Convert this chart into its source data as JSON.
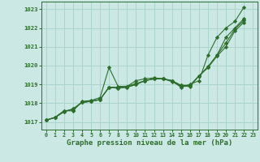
{
  "background_color": "#cce8e4",
  "plot_bg_color": "#cce8e4",
  "grid_color": "#aad4cc",
  "line_color": "#2d6e2d",
  "marker_color": "#2d6e2d",
  "xlabel": "Graphe pression niveau de la mer (hPa)",
  "xlabel_fontsize": 6.5,
  "ylim": [
    1016.6,
    1023.4
  ],
  "xlim": [
    -0.5,
    23.5
  ],
  "yticks": [
    1017,
    1018,
    1019,
    1020,
    1021,
    1022,
    1023
  ],
  "xticks": [
    0,
    1,
    2,
    3,
    4,
    5,
    6,
    7,
    8,
    9,
    10,
    11,
    12,
    13,
    14,
    15,
    16,
    17,
    18,
    19,
    20,
    21,
    22,
    23
  ],
  "series": [
    [
      1017.1,
      1017.25,
      1017.6,
      1017.6,
      1018.1,
      1018.15,
      1018.3,
      1019.9,
      1018.9,
      1018.9,
      1019.2,
      1019.3,
      1019.35,
      1019.3,
      1019.2,
      1018.85,
      1019.0,
      1019.2,
      1020.55,
      1021.5,
      1022.0,
      1022.35,
      1023.1
    ],
    [
      1017.1,
      1017.25,
      1017.6,
      1017.65,
      1018.05,
      1018.1,
      1018.2,
      1018.85,
      1018.85,
      1018.9,
      1019.05,
      1019.2,
      1019.3,
      1019.3,
      1019.15,
      1018.9,
      1018.9,
      1019.45,
      1019.9,
      1020.5,
      1021.0,
      1021.85,
      1022.3
    ],
    [
      1017.1,
      1017.25,
      1017.55,
      1017.7,
      1018.05,
      1018.1,
      1018.2,
      1018.85,
      1018.8,
      1018.85,
      1019.0,
      1019.2,
      1019.3,
      1019.3,
      1019.2,
      1018.95,
      1018.95,
      1019.45,
      1019.95,
      1020.55,
      1021.5,
      1022.0,
      1022.5
    ],
    [
      1017.1,
      1017.25,
      1017.55,
      1017.7,
      1018.05,
      1018.1,
      1018.2,
      1018.85,
      1018.8,
      1018.85,
      1019.0,
      1019.2,
      1019.3,
      1019.3,
      1019.2,
      1018.95,
      1018.95,
      1019.45,
      1019.9,
      1020.55,
      1021.2,
      1021.95,
      1022.4
    ]
  ]
}
